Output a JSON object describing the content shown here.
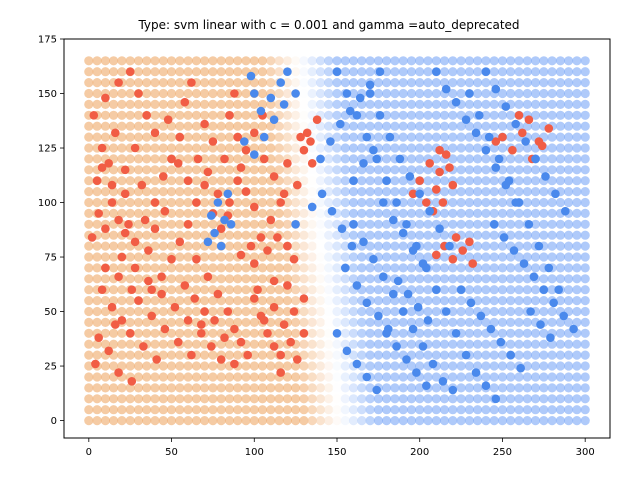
{
  "chart_data": {
    "type": "scatter",
    "title": "Type: svm linear with c = 0.001 and gamma =auto_deprecated",
    "xlabel": "",
    "ylabel": "",
    "xlim": [
      -15,
      315
    ],
    "ylim": [
      -8,
      175
    ],
    "x_ticks": [
      0,
      50,
      100,
      150,
      200,
      250,
      300
    ],
    "y_ticks": [
      0,
      25,
      50,
      75,
      100,
      125,
      150,
      175
    ],
    "grid": false,
    "decision_background": {
      "x_range": [
        0,
        300
      ],
      "y_range": [
        0,
        165
      ],
      "boundary_x": 140,
      "boundary_slope_x_per_y": 0.15,
      "transition_width": 22,
      "left_color": "#efa868",
      "right_color": "#79a7f7",
      "mid_color": "#ffffff"
    },
    "series": [
      {
        "class": "red",
        "color": "#f15d45",
        "points": [
          [
            2,
            84
          ],
          [
            6,
            95
          ],
          [
            10,
            88
          ],
          [
            14,
            100
          ],
          [
            18,
            92
          ],
          [
            22,
            86
          ],
          [
            5,
            110
          ],
          [
            12,
            118
          ],
          [
            8,
            125
          ],
          [
            16,
            132
          ],
          [
            3,
            140
          ],
          [
            10,
            148
          ],
          [
            18,
            155
          ],
          [
            25,
            160
          ],
          [
            30,
            150
          ],
          [
            35,
            140
          ],
          [
            40,
            132
          ],
          [
            28,
            125
          ],
          [
            22,
            115
          ],
          [
            32,
            108
          ],
          [
            40,
            100
          ],
          [
            45,
            112
          ],
          [
            50,
            120
          ],
          [
            55,
            130
          ],
          [
            48,
            138
          ],
          [
            58,
            146
          ],
          [
            62,
            155
          ],
          [
            20,
            75
          ],
          [
            28,
            70
          ],
          [
            36,
            64
          ],
          [
            44,
            58
          ],
          [
            52,
            52
          ],
          [
            60,
            46
          ],
          [
            68,
            40
          ],
          [
            30,
            55
          ],
          [
            38,
            48
          ],
          [
            46,
            42
          ],
          [
            54,
            36
          ],
          [
            62,
            30
          ],
          [
            25,
            40
          ],
          [
            33,
            34
          ],
          [
            41,
            28
          ],
          [
            18,
            22
          ],
          [
            26,
            18
          ],
          [
            8,
            60
          ],
          [
            14,
            52
          ],
          [
            20,
            46
          ],
          [
            6,
            38
          ],
          [
            12,
            32
          ],
          [
            4,
            26
          ],
          [
            16,
            44
          ],
          [
            10,
            70
          ],
          [
            18,
            66
          ],
          [
            26,
            60
          ],
          [
            65,
            100
          ],
          [
            70,
            108
          ],
          [
            75,
            95
          ],
          [
            80,
            88
          ],
          [
            85,
            100
          ],
          [
            90,
            110
          ],
          [
            95,
            105
          ],
          [
            100,
            98
          ],
          [
            60,
            90
          ],
          [
            55,
            82
          ],
          [
            50,
            74
          ],
          [
            65,
            74
          ],
          [
            72,
            66
          ],
          [
            78,
            58
          ],
          [
            84,
            50
          ],
          [
            88,
            42
          ],
          [
            92,
            36
          ],
          [
            96,
            30
          ],
          [
            80,
            28
          ],
          [
            74,
            34
          ],
          [
            68,
            44
          ],
          [
            100,
            56
          ],
          [
            104,
            48
          ],
          [
            108,
            40
          ],
          [
            112,
            52
          ],
          [
            118,
            44
          ],
          [
            122,
            36
          ],
          [
            116,
            30
          ],
          [
            100,
            72
          ],
          [
            108,
            78
          ],
          [
            114,
            84
          ],
          [
            120,
            80
          ],
          [
            124,
            74
          ],
          [
            110,
            92
          ],
          [
            116,
            100
          ],
          [
            104,
            84
          ],
          [
            98,
            80
          ],
          [
            92,
            76
          ],
          [
            112,
            64
          ],
          [
            85,
            140
          ],
          [
            90,
            130
          ],
          [
            95,
            124
          ],
          [
            100,
            132
          ],
          [
            105,
            140
          ],
          [
            88,
            150
          ],
          [
            82,
            120
          ],
          [
            75,
            128
          ],
          [
            70,
            136
          ],
          [
            92,
            116
          ],
          [
            120,
            118
          ],
          [
            126,
            108
          ],
          [
            118,
            104
          ],
          [
            112,
            112
          ],
          [
            106,
            120
          ],
          [
            128,
            130
          ],
          [
            134,
            128
          ],
          [
            138,
            138
          ],
          [
            132,
            132
          ],
          [
            130,
            124
          ],
          [
            135,
            118
          ],
          [
            40,
            88
          ],
          [
            46,
            96
          ],
          [
            34,
            92
          ],
          [
            28,
            82
          ],
          [
            24,
            90
          ],
          [
            36,
            78
          ],
          [
            14,
            108
          ],
          [
            22,
            104
          ],
          [
            8,
            116
          ],
          [
            200,
            110
          ],
          [
            206,
            118
          ],
          [
            212,
            114
          ],
          [
            216,
            122
          ],
          [
            210,
            106
          ],
          [
            204,
            100
          ],
          [
            208,
            96
          ],
          [
            220,
            108
          ],
          [
            196,
            104
          ],
          [
            214,
            100
          ],
          [
            218,
            116
          ],
          [
            212,
            124
          ],
          [
            215,
            80
          ],
          [
            220,
            74
          ],
          [
            226,
            78
          ],
          [
            232,
            72
          ],
          [
            222,
            84
          ],
          [
            210,
            76
          ],
          [
            230,
            82
          ],
          [
            250,
            130
          ],
          [
            256,
            124
          ],
          [
            262,
            132
          ],
          [
            268,
            120
          ],
          [
            272,
            128
          ],
          [
            278,
            134
          ],
          [
            260,
            140
          ],
          [
            266,
            138
          ],
          [
            274,
            126
          ],
          [
            246,
            128
          ],
          [
            130,
            56
          ],
          [
            124,
            50
          ],
          [
            120,
            62
          ],
          [
            130,
            40
          ],
          [
            126,
            28
          ],
          [
            116,
            22
          ],
          [
            112,
            34
          ],
          [
            106,
            46
          ],
          [
            102,
            60
          ],
          [
            60,
            110
          ],
          [
            54,
            118
          ],
          [
            66,
            120
          ],
          [
            72,
            114
          ],
          [
            78,
            104
          ],
          [
            84,
            94
          ],
          [
            44,
            66
          ],
          [
            38,
            60
          ],
          [
            58,
            62
          ],
          [
            64,
            56
          ],
          [
            70,
            50
          ],
          [
            76,
            46
          ],
          [
            82,
            38
          ],
          [
            88,
            26
          ]
        ]
      },
      {
        "class": "blue",
        "color": "#4a89ec",
        "points": [
          [
            100,
            150
          ],
          [
            104,
            142
          ],
          [
            110,
            148
          ],
          [
            116,
            155
          ],
          [
            112,
            138
          ],
          [
            106,
            130
          ],
          [
            100,
            122
          ],
          [
            94,
            128
          ],
          [
            98,
            158
          ],
          [
            120,
            160
          ],
          [
            118,
            145
          ],
          [
            125,
            150
          ],
          [
            78,
            100
          ],
          [
            82,
            92
          ],
          [
            76,
            86
          ],
          [
            80,
            80
          ],
          [
            86,
            90
          ],
          [
            84,
            104
          ],
          [
            74,
            94
          ],
          [
            72,
            82
          ],
          [
            150,
            160
          ],
          [
            156,
            150
          ],
          [
            162,
            140
          ],
          [
            168,
            130
          ],
          [
            174,
            120
          ],
          [
            180,
            110
          ],
          [
            186,
            100
          ],
          [
            192,
            90
          ],
          [
            198,
            80
          ],
          [
            204,
            70
          ],
          [
            210,
            60
          ],
          [
            216,
            50
          ],
          [
            222,
            40
          ],
          [
            228,
            30
          ],
          [
            234,
            22
          ],
          [
            240,
            16
          ],
          [
            246,
            10
          ],
          [
            160,
            90
          ],
          [
            166,
            82
          ],
          [
            172,
            74
          ],
          [
            178,
            66
          ],
          [
            184,
            58
          ],
          [
            190,
            50
          ],
          [
            196,
            42
          ],
          [
            202,
            34
          ],
          [
            208,
            26
          ],
          [
            214,
            18
          ],
          [
            220,
            14
          ],
          [
            170,
            150
          ],
          [
            176,
            140
          ],
          [
            182,
            130
          ],
          [
            188,
            120
          ],
          [
            194,
            112
          ],
          [
            200,
            104
          ],
          [
            206,
            96
          ],
          [
            212,
            88
          ],
          [
            218,
            80
          ],
          [
            240,
            160
          ],
          [
            246,
            152
          ],
          [
            252,
            144
          ],
          [
            258,
            136
          ],
          [
            264,
            128
          ],
          [
            270,
            120
          ],
          [
            276,
            112
          ],
          [
            282,
            104
          ],
          [
            288,
            96
          ],
          [
            230,
            150
          ],
          [
            236,
            140
          ],
          [
            242,
            130
          ],
          [
            248,
            120
          ],
          [
            254,
            110
          ],
          [
            260,
            100
          ],
          [
            266,
            90
          ],
          [
            272,
            80
          ],
          [
            278,
            70
          ],
          [
            284,
            60
          ],
          [
            150,
            40
          ],
          [
            156,
            32
          ],
          [
            162,
            26
          ],
          [
            168,
            20
          ],
          [
            174,
            14
          ],
          [
            180,
            40
          ],
          [
            186,
            34
          ],
          [
            192,
            28
          ],
          [
            198,
            22
          ],
          [
            204,
            16
          ],
          [
            160,
            110
          ],
          [
            166,
            118
          ],
          [
            172,
            124
          ],
          [
            178,
            100
          ],
          [
            184,
            92
          ],
          [
            190,
            86
          ],
          [
            196,
            78
          ],
          [
            202,
            72
          ],
          [
            210,
            160
          ],
          [
            216,
            152
          ],
          [
            222,
            146
          ],
          [
            228,
            138
          ],
          [
            234,
            132
          ],
          [
            240,
            124
          ],
          [
            246,
            116
          ],
          [
            252,
            108
          ],
          [
            258,
            100
          ],
          [
            155,
            70
          ],
          [
            162,
            62
          ],
          [
            168,
            54
          ],
          [
            175,
            48
          ],
          [
            181,
            42
          ],
          [
            187,
            64
          ],
          [
            193,
            58
          ],
          [
            199,
            52
          ],
          [
            205,
            46
          ],
          [
            225,
            60
          ],
          [
            231,
            54
          ],
          [
            237,
            48
          ],
          [
            243,
            42
          ],
          [
            249,
            36
          ],
          [
            255,
            30
          ],
          [
            261,
            24
          ],
          [
            267,
            50
          ],
          [
            273,
            44
          ],
          [
            279,
            38
          ],
          [
            245,
            90
          ],
          [
            251,
            84
          ],
          [
            257,
            78
          ],
          [
            263,
            72
          ],
          [
            269,
            66
          ],
          [
            275,
            60
          ],
          [
            281,
            54
          ],
          [
            287,
            48
          ],
          [
            293,
            42
          ],
          [
            140,
            120
          ],
          [
            146,
            128
          ],
          [
            152,
            136
          ],
          [
            158,
            142
          ],
          [
            164,
            148
          ],
          [
            170,
            154
          ],
          [
            176,
            160
          ],
          [
            125,
            90
          ],
          [
            135,
            98
          ],
          [
            141,
            104
          ],
          [
            147,
            96
          ],
          [
            153,
            88
          ],
          [
            159,
            80
          ]
        ]
      }
    ]
  }
}
